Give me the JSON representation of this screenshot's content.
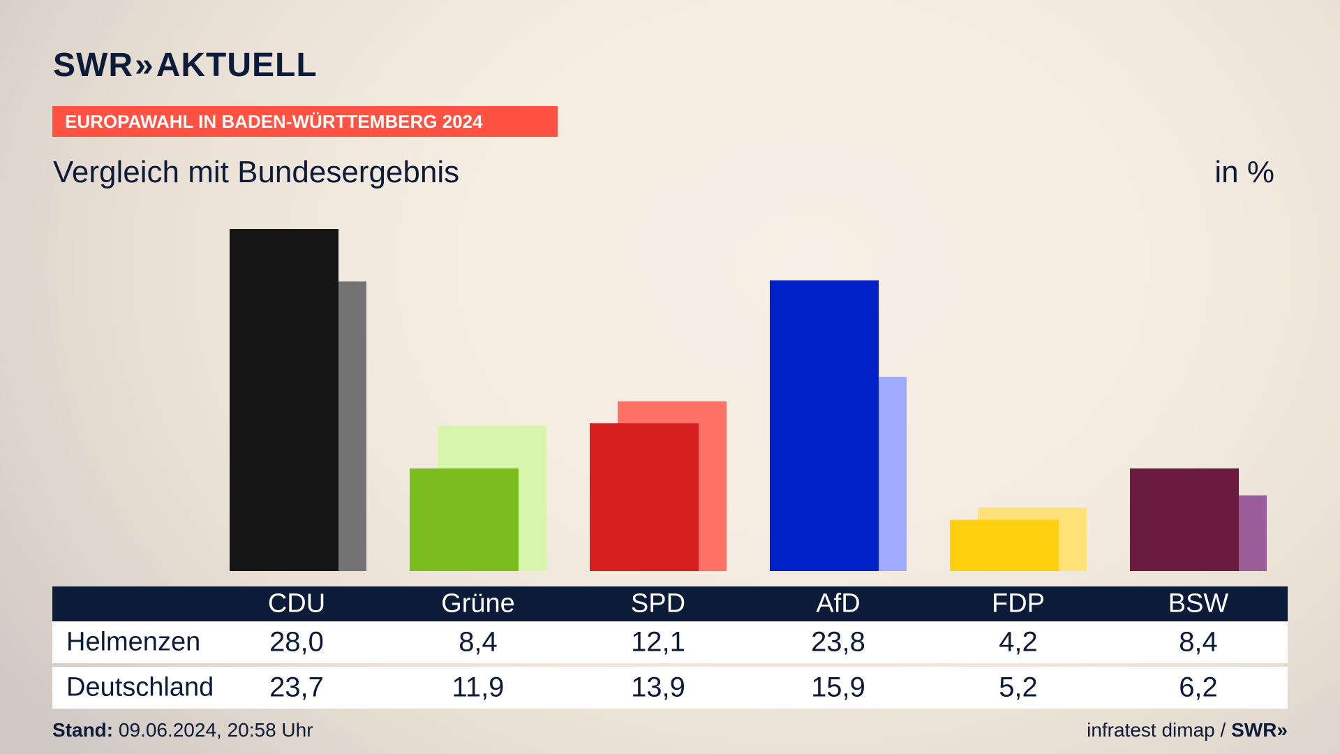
{
  "header": {
    "logo_text": "SWR",
    "logo_arrows": "»",
    "logo_suffix": "AKTUELL",
    "banner": "EUROPAWAHL IN BADEN-WÜRTTEMBERG 2024",
    "subtitle": "Vergleich mit Bundesergebnis",
    "unit": "in %"
  },
  "table": {
    "row1_label": "Helmenzen",
    "row2_label": "Deutschland"
  },
  "footer": {
    "stand_label": "Stand:",
    "stand_value": "09.06.2024, 20:58 Uhr",
    "source": "infratest dimap /",
    "source_logo": "SWR»"
  },
  "chart_data": {
    "type": "bar",
    "categories": [
      "CDU",
      "Grüne",
      "SPD",
      "AfD",
      "FDP",
      "BSW"
    ],
    "series": [
      {
        "name": "Helmenzen",
        "values": [
          28.0,
          8.4,
          12.1,
          23.8,
          4.2,
          8.4
        ],
        "labels": [
          "28,0",
          "8,4",
          "12,1",
          "23,8",
          "4,2",
          "8,4"
        ]
      },
      {
        "name": "Deutschland",
        "values": [
          23.7,
          11.9,
          13.9,
          15.9,
          5.2,
          6.2
        ],
        "labels": [
          "23,7",
          "11,9",
          "13,9",
          "15,9",
          "5,2",
          "6,2"
        ]
      }
    ],
    "colors_primary": [
      "#151515",
      "#7abd1c",
      "#d61f1f",
      "#0020c8",
      "#ffd010",
      "#6b1a40"
    ],
    "colors_secondary": [
      "#737373",
      "#d7f5ab",
      "#ff7067",
      "#9eabff",
      "#ffe27a",
      "#9b5e9a"
    ],
    "ylim": [
      0,
      28.0
    ],
    "grid": false,
    "legend": "none"
  }
}
